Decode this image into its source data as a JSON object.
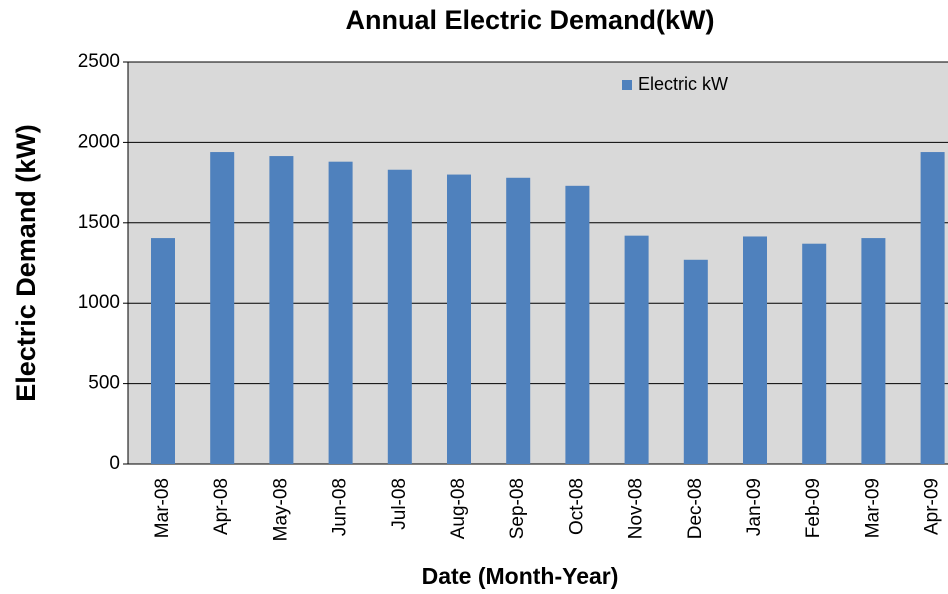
{
  "chart_data": {
    "type": "bar",
    "title": "Annual Electric Demand(kW)",
    "x_label": "Date (Month-Year)",
    "y_label": "Electric Demand (kW)",
    "categories": [
      "Mar-08",
      "Apr-08",
      "May-08",
      "Jun-08",
      "Jul-08",
      "Aug-08",
      "Sep-08",
      "Oct-08",
      "Nov-08",
      "Dec-08",
      "Jan-09",
      "Feb-09",
      "Mar-09",
      "Apr-09"
    ],
    "series": [
      {
        "name": "Electric kW",
        "color": "#4f81bd",
        "values": [
          1405,
          1940,
          1915,
          1880,
          1830,
          1800,
          1780,
          1730,
          1420,
          1270,
          1415,
          1370,
          1405,
          1940
        ]
      }
    ],
    "ylim": [
      0,
      2500
    ],
    "yticks": [
      0,
      500,
      1000,
      1500,
      2000,
      2500
    ],
    "grid": true,
    "legend": "top-right"
  }
}
